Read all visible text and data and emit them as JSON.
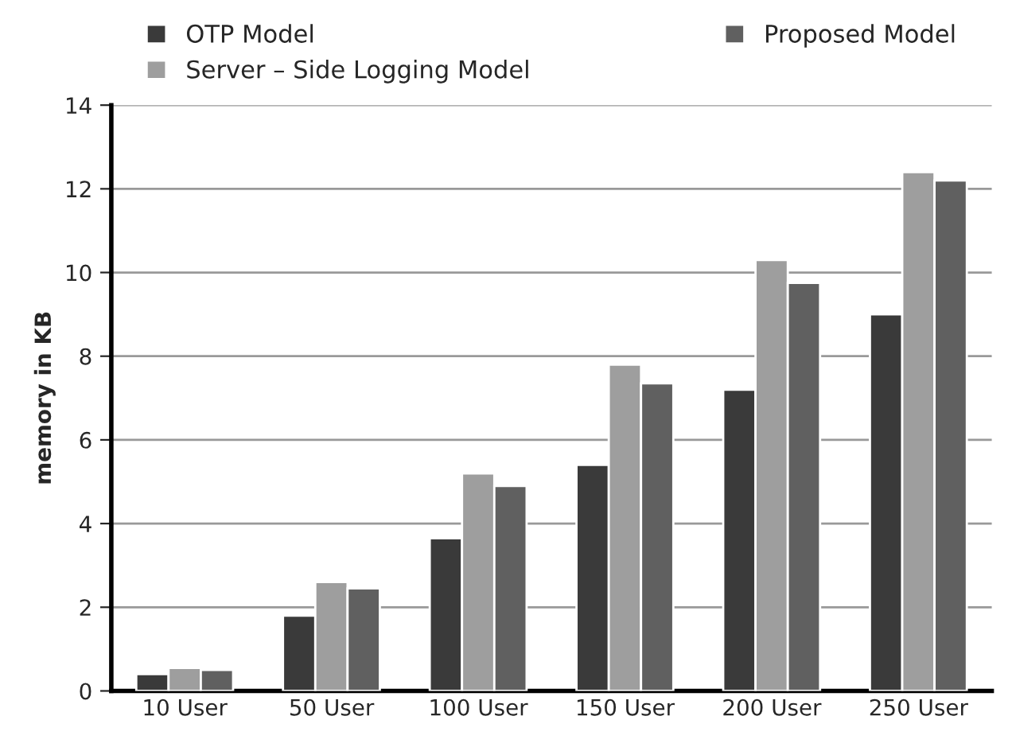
{
  "chart_data": {
    "type": "bar",
    "ylabel": "memory in KB",
    "categories": [
      "10 User",
      "50 User",
      "100 User",
      "150 User",
      "200 User",
      "250 User"
    ],
    "series": [
      {
        "name": "OTP Model",
        "color": "#3a3a3a",
        "values": [
          0.4,
          1.8,
          3.65,
          5.4,
          7.2,
          9.0
        ]
      },
      {
        "name": "Server – Side Logging Model",
        "color": "#9e9e9e",
        "values": [
          0.55,
          2.6,
          5.2,
          7.8,
          10.3,
          12.4
        ]
      },
      {
        "name": "Proposed Model",
        "color": "#606060",
        "values": [
          0.5,
          2.45,
          4.9,
          7.35,
          9.75,
          12.2
        ]
      }
    ],
    "ylim": [
      0,
      14
    ],
    "yticks": [
      0,
      2,
      4,
      6,
      8,
      10,
      12,
      14
    ],
    "grid": "y",
    "legend": "top"
  }
}
